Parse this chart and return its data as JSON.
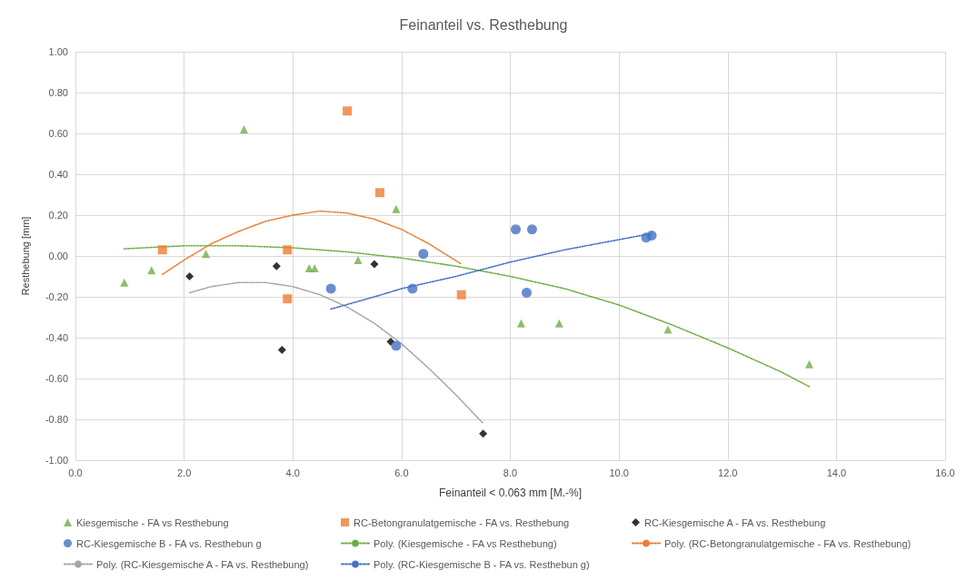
{
  "chart_data": {
    "type": "scatter",
    "title": "Feinanteil vs. Resthebung",
    "xlabel": "Feinanteil < 0.063 mm [M.-%]",
    "ylabel": "Resthebung [mm]",
    "xlim": [
      0,
      16
    ],
    "xticks": [
      {
        "value": 0,
        "label": "0.0"
      },
      {
        "value": 2,
        "label": "2.0"
      },
      {
        "value": 4,
        "label": "4.0"
      },
      {
        "value": 6,
        "label": "6.0"
      },
      {
        "value": 8,
        "label": "8.0"
      },
      {
        "value": 10,
        "label": "10.0"
      },
      {
        "value": 12,
        "label": "12.0"
      },
      {
        "value": 14,
        "label": "14.0"
      },
      {
        "value": 16,
        "label": "16.0"
      }
    ],
    "ylim": [
      -1,
      1
    ],
    "yticks": [
      {
        "value": -1,
        "label": "-1.00"
      },
      {
        "value": -0.8,
        "label": "-0.80"
      },
      {
        "value": -0.6,
        "label": "-0.60"
      },
      {
        "value": -0.4,
        "label": "-0.40"
      },
      {
        "value": -0.2,
        "label": "-0.20"
      },
      {
        "value": 0,
        "label": "0.00"
      },
      {
        "value": 0.2,
        "label": "0.20"
      },
      {
        "value": 0.4,
        "label": "0.40"
      },
      {
        "value": 0.6,
        "label": "0.60"
      },
      {
        "value": 0.8,
        "label": "0.80"
      },
      {
        "value": 1,
        "label": "1.00"
      }
    ],
    "grid": true,
    "legend": "bottom",
    "series": [
      {
        "name": "Kiesgemische - FA vs Resthebung",
        "color": "#70ad47",
        "marker": "triangle",
        "x": [
          0.9,
          1.4,
          2.4,
          3.1,
          4.3,
          4.4,
          5.2,
          5.9,
          8.2,
          8.9,
          10.9,
          13.5
        ],
        "values": [
          -0.13,
          -0.07,
          0.01,
          0.62,
          -0.06,
          -0.06,
          -0.02,
          0.23,
          -0.33,
          -0.33,
          -0.36,
          -0.53
        ]
      },
      {
        "name": "RC-Betongranulatgemische - FA vs. Resthebung",
        "color": "#ed7d31",
        "marker": "square",
        "x": [
          1.6,
          3.9,
          3.9,
          5.0,
          5.6,
          7.1
        ],
        "values": [
          0.03,
          0.03,
          -0.21,
          0.71,
          0.31,
          -0.19
        ]
      },
      {
        "name": "RC-Kiesgemische A - FA vs. Resthebung",
        "color": "#000000",
        "marker": "diamond",
        "x": [
          2.1,
          3.7,
          3.8,
          5.5,
          5.8,
          7.5
        ],
        "values": [
          -0.1,
          -0.05,
          -0.46,
          -0.04,
          -0.42,
          -0.87
        ]
      },
      {
        "name": "RC-Kiesgemische B - FA vs. Resthebun g",
        "color": "#4472c4",
        "marker": "circle",
        "x": [
          4.7,
          5.9,
          6.2,
          6.4,
          8.1,
          8.3,
          8.4,
          10.5,
          10.6
        ],
        "values": [
          -0.16,
          -0.44,
          -0.16,
          0.01,
          0.13,
          -0.18,
          0.13,
          0.09,
          0.1
        ]
      },
      {
        "name": "Poly. (Kiesgemische - FA vs Resthebung)",
        "type": "line",
        "color": "#70ad47",
        "marker": "none",
        "line_style": "dotted",
        "x": [
          0.9,
          2,
          3,
          4,
          5,
          6,
          7,
          8,
          9,
          10,
          11,
          12,
          13,
          13.5
        ],
        "values": [
          0.035,
          0.05,
          0.05,
          0.04,
          0.02,
          -0.01,
          -0.05,
          -0.1,
          -0.16,
          -0.24,
          -0.34,
          -0.45,
          -0.57,
          -0.64
        ]
      },
      {
        "name": "Poly. (RC-Betongranulatgemische - FA vs. Resthebung)",
        "type": "line",
        "color": "#ed7d31",
        "marker": "none",
        "line_style": "dotted",
        "x": [
          1.6,
          2,
          2.5,
          3,
          3.5,
          4,
          4.5,
          5,
          5.5,
          6,
          6.5,
          7.1
        ],
        "values": [
          -0.09,
          -0.02,
          0.06,
          0.12,
          0.17,
          0.2,
          0.22,
          0.21,
          0.18,
          0.13,
          0.06,
          -0.04
        ]
      },
      {
        "name": "Poly. (RC-Kiesgemische A - FA vs. Resthebung)",
        "type": "line",
        "color": "#a5a5a5",
        "marker": "none",
        "line_style": "dotted",
        "x": [
          2.1,
          2.5,
          3,
          3.5,
          4,
          4.5,
          5,
          5.5,
          6,
          6.5,
          7,
          7.5
        ],
        "values": [
          -0.18,
          -0.15,
          -0.13,
          -0.13,
          -0.15,
          -0.19,
          -0.25,
          -0.33,
          -0.43,
          -0.55,
          -0.68,
          -0.82
        ]
      },
      {
        "name": "Poly. (RC-Kiesgemische B - FA vs. Resthebun g)",
        "type": "line",
        "color": "#4472c4",
        "marker": "none",
        "line_style": "dotted",
        "x": [
          4.7,
          5.5,
          6,
          7,
          8,
          9,
          10,
          10.6
        ],
        "values": [
          -0.26,
          -0.2,
          -0.16,
          -0.1,
          -0.03,
          0.03,
          0.08,
          0.11
        ]
      }
    ]
  }
}
